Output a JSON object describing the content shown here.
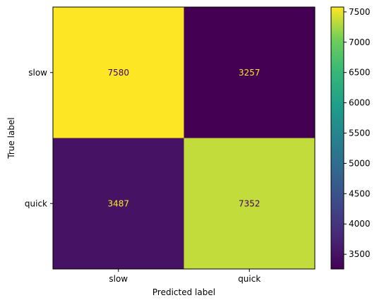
{
  "chart_data": {
    "type": "heatmap",
    "title": "",
    "xlabel": "Predicted label",
    "ylabel": "True label",
    "row_labels": [
      "slow",
      "quick"
    ],
    "col_labels": [
      "slow",
      "quick"
    ],
    "values": [
      [
        7580,
        3257
      ],
      [
        3487,
        7352
      ]
    ],
    "colormap": "viridis",
    "colorbar": {
      "vmin": 3257,
      "vmax": 7580,
      "ticks": [
        3500,
        4000,
        4500,
        5000,
        5500,
        6000,
        6500,
        7000,
        7500
      ],
      "tick_labels": [
        "3500",
        "4000",
        "4500",
        "5000",
        "5500",
        "6000",
        "6500",
        "7000",
        "7500"
      ]
    },
    "cell_text_colors": [
      [
        "#440154",
        "#fde725"
      ],
      [
        "#fde725",
        "#440154"
      ]
    ]
  }
}
